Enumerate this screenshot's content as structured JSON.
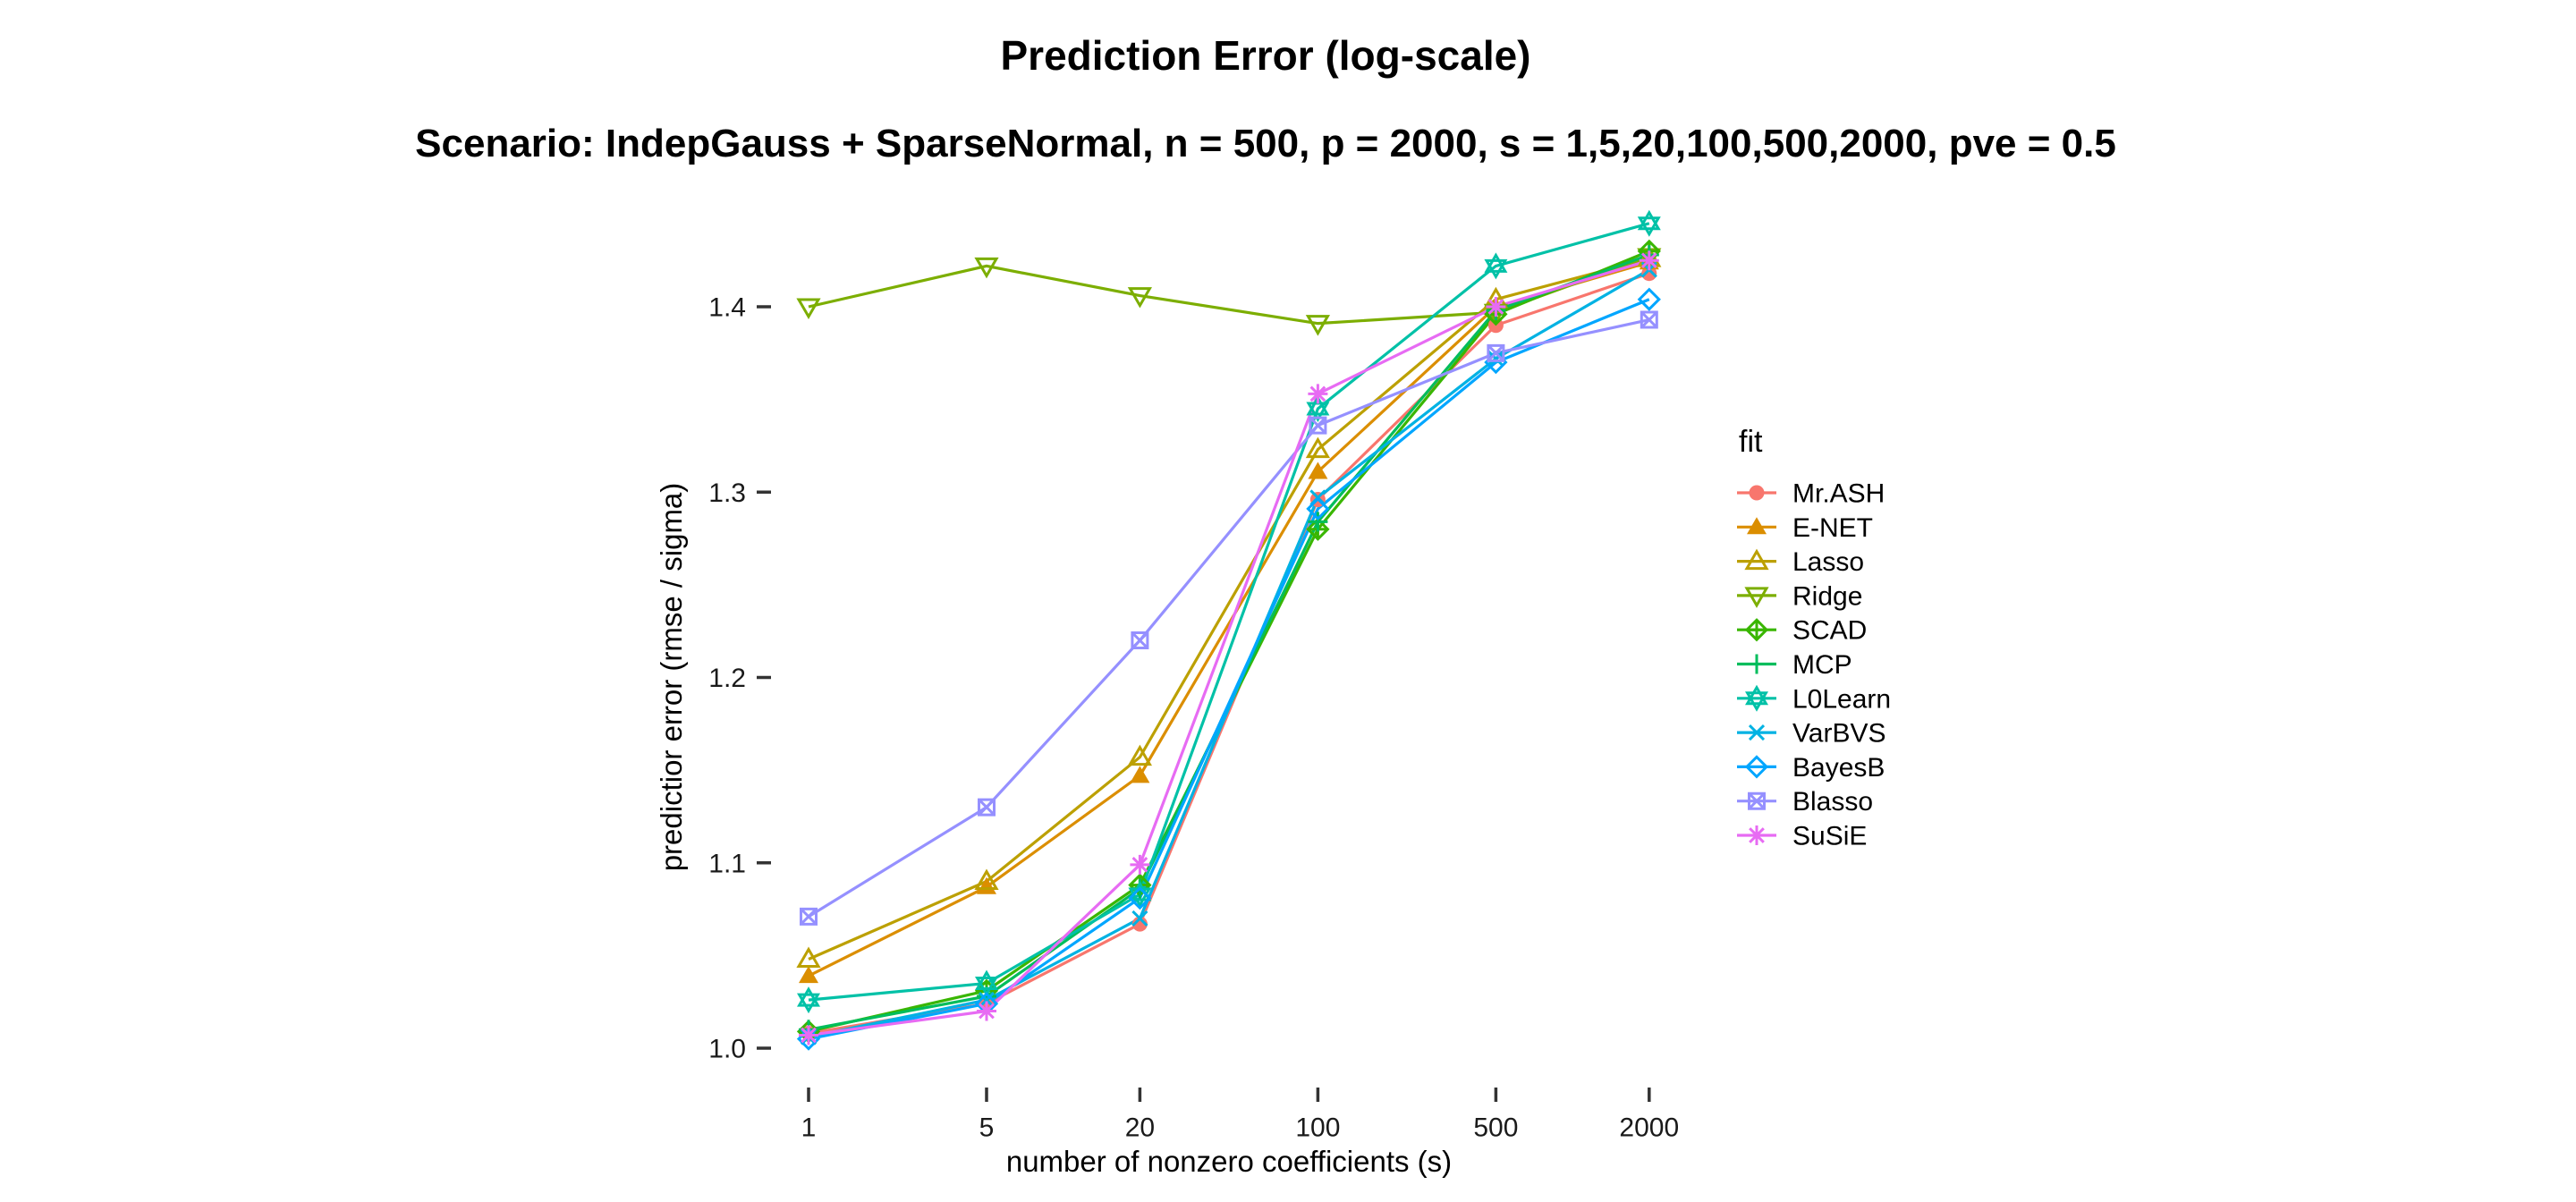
{
  "chart_data": {
    "type": "line",
    "title": "Prediction Error (log-scale)",
    "subtitle": "Scenario: IndepGauss + SparseNormal, n = 500, p = 2000, s = 1,5,20,100,500,2000, pve = 0.5",
    "xlabel": "number of nonzero coefficients (s)",
    "ylabel": "predictior error (rmse / sigma)",
    "legend_title": "fit",
    "legend_position": "right",
    "grid": false,
    "x_scale": "log10",
    "x": [
      1,
      5,
      20,
      100,
      500,
      2000
    ],
    "x_tick_labels": [
      "1",
      "5",
      "20",
      "100",
      "500",
      "2000"
    ],
    "yticks": [
      1.0,
      1.1,
      1.2,
      1.3,
      1.4
    ],
    "ylim": [
      0.995,
      1.455
    ],
    "series": [
      {
        "name": "Mr.ASH",
        "color": "#F8766D",
        "marker": "circle-filled",
        "values": [
          1.008,
          1.024,
          1.067,
          1.296,
          1.39,
          1.418
        ]
      },
      {
        "name": "E-NET",
        "color": "#DB8E00",
        "marker": "triangle-filled",
        "values": [
          1.039,
          1.087,
          1.147,
          1.311,
          1.4,
          1.424
        ]
      },
      {
        "name": "Lasso",
        "color": "#BCA000",
        "marker": "triangle-open",
        "values": [
          1.048,
          1.09,
          1.157,
          1.323,
          1.404,
          1.426
        ]
      },
      {
        "name": "Ridge",
        "color": "#7CAE00",
        "marker": "triangle-down-open",
        "values": [
          1.4,
          1.422,
          1.406,
          1.391,
          1.397,
          1.427
        ]
      },
      {
        "name": "SCAD",
        "color": "#39B600",
        "marker": "diamond-plus",
        "values": [
          1.009,
          1.031,
          1.088,
          1.28,
          1.396,
          1.43
        ]
      },
      {
        "name": "MCP",
        "color": "#00BD5C",
        "marker": "plus",
        "values": [
          1.01,
          1.028,
          1.086,
          1.284,
          1.398,
          1.428
        ]
      },
      {
        "name": "L0Learn",
        "color": "#00C1A7",
        "marker": "star-of-david",
        "values": [
          1.026,
          1.035,
          1.083,
          1.345,
          1.422,
          1.445
        ]
      },
      {
        "name": "VarBVS",
        "color": "#00B2E3",
        "marker": "x-cross",
        "values": [
          1.006,
          1.026,
          1.07,
          1.297,
          1.372,
          1.42
        ]
      },
      {
        "name": "BayesB",
        "color": "#00A6FF",
        "marker": "diamond-open",
        "values": [
          1.005,
          1.024,
          1.081,
          1.291,
          1.37,
          1.404
        ]
      },
      {
        "name": "Blasso",
        "color": "#9590FF",
        "marker": "square-x",
        "values": [
          1.071,
          1.13,
          1.22,
          1.336,
          1.375,
          1.393
        ]
      },
      {
        "name": "SuSiE",
        "color": "#E76BF3",
        "marker": "asterisk",
        "values": [
          1.007,
          1.02,
          1.099,
          1.353,
          1.4,
          1.425
        ]
      }
    ]
  }
}
